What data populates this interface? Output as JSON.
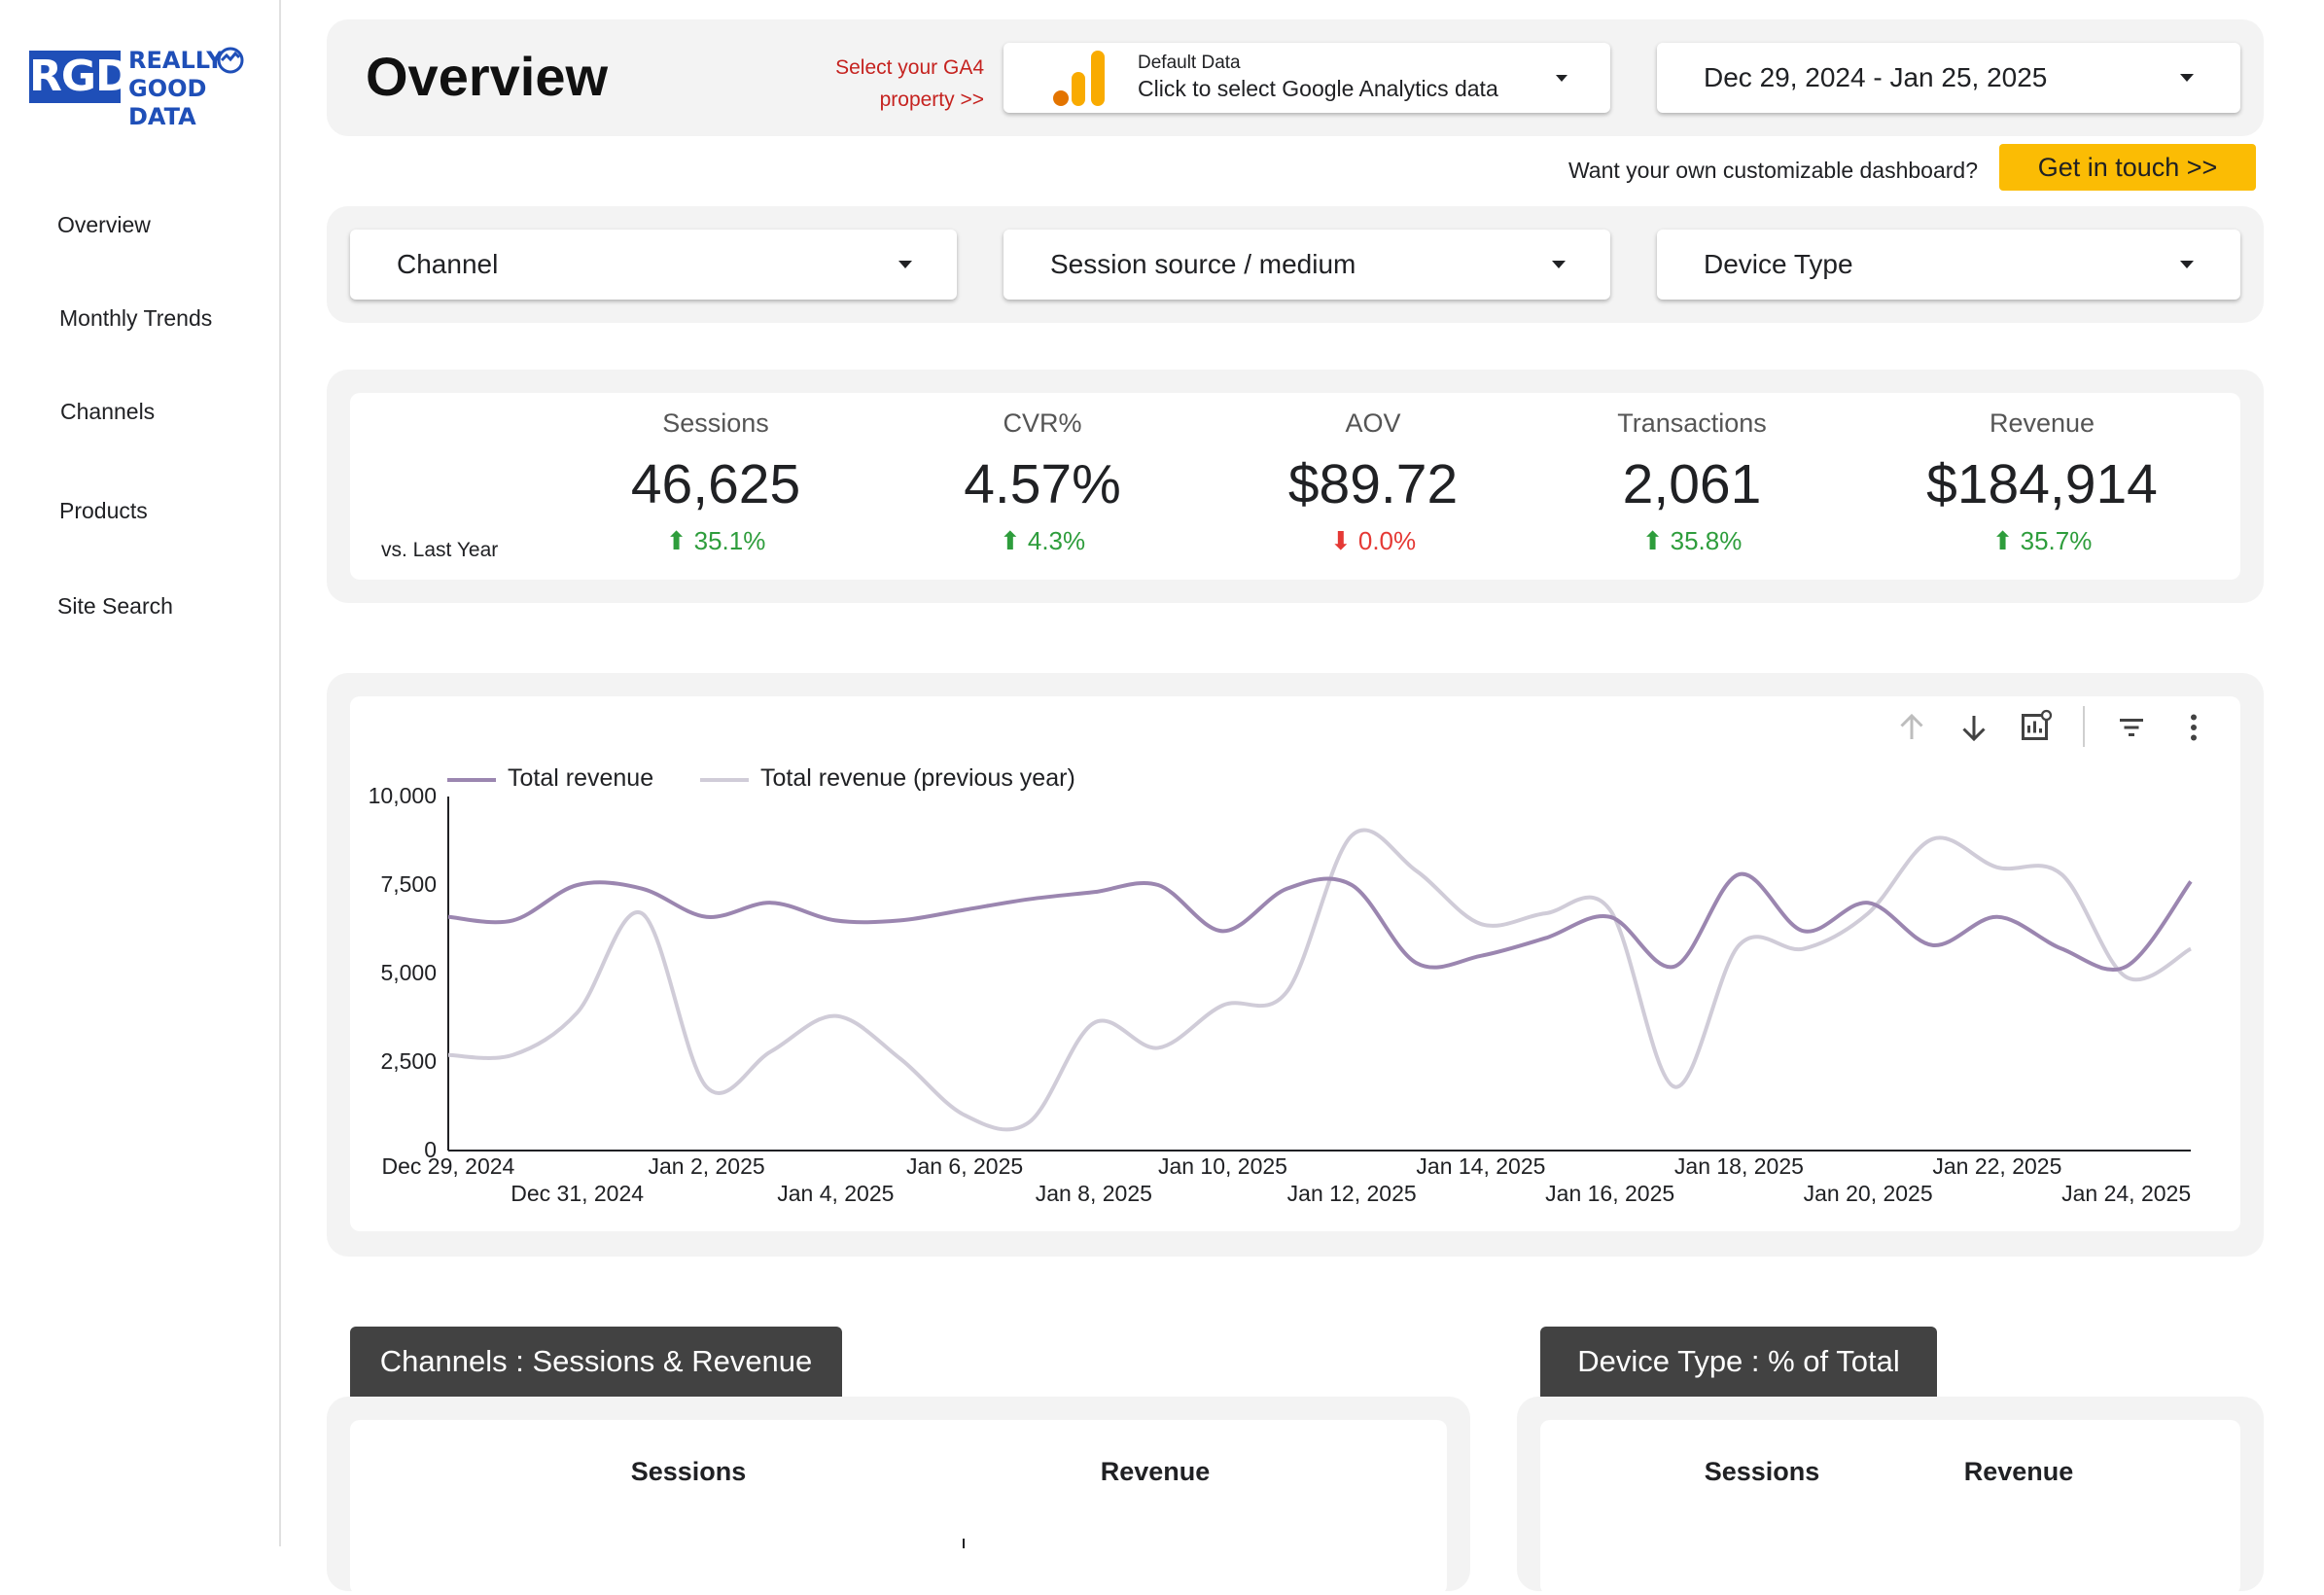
{
  "brand": {
    "logo_initials": "RGD",
    "logo_line1": "REALLY",
    "logo_line2": "GOOD DATA"
  },
  "nav": {
    "items": [
      {
        "label": "Overview"
      },
      {
        "label": "Monthly Trends"
      },
      {
        "label": "Channels"
      },
      {
        "label": "Products"
      },
      {
        "label": "Site Search"
      }
    ]
  },
  "header": {
    "title": "Overview",
    "ga4_prompt_line1": "Select your GA4",
    "ga4_prompt_line2": "property >>",
    "data_source": {
      "label": "Default Data",
      "value": "Click to select Google Analytics data",
      "icon": "google-analytics-icon"
    },
    "date_range": "Dec 29, 2024 - Jan 25, 2025",
    "cta_prompt": "Want your own customizable dashboard?",
    "cta_button": "Get in touch >>"
  },
  "filters": [
    {
      "label": "Channel"
    },
    {
      "label": "Session source / medium"
    },
    {
      "label": "Device Type"
    }
  ],
  "kpis": {
    "comparison_label": "vs. Last Year",
    "items": [
      {
        "label": "Sessions",
        "value": "46,625",
        "delta": "35.1%",
        "direction": "up"
      },
      {
        "label": "CVR%",
        "value": "4.57%",
        "delta": "4.3%",
        "direction": "up"
      },
      {
        "label": "AOV",
        "value": "$89.72",
        "delta": "0.0%",
        "direction": "down"
      },
      {
        "label": "Transactions",
        "value": "2,061",
        "delta": "35.8%",
        "direction": "up"
      },
      {
        "label": "Revenue",
        "value": "$184,914",
        "delta": "35.7%",
        "direction": "up"
      }
    ]
  },
  "chart_data": {
    "type": "line",
    "title": "",
    "xlabel": "",
    "ylabel": "",
    "ylim": [
      0,
      10000
    ],
    "yticks": [
      "0",
      "2,500",
      "5,000",
      "7,500",
      "10,000"
    ],
    "ytick_values": [
      0,
      2500,
      5000,
      7500,
      10000
    ],
    "x": [
      "Dec 29, 2024",
      "Dec 30, 2024",
      "Dec 31, 2024",
      "Jan 1, 2025",
      "Jan 2, 2025",
      "Jan 3, 2025",
      "Jan 4, 2025",
      "Jan 5, 2025",
      "Jan 6, 2025",
      "Jan 7, 2025",
      "Jan 8, 2025",
      "Jan 9, 2025",
      "Jan 10, 2025",
      "Jan 11, 2025",
      "Jan 12, 2025",
      "Jan 13, 2025",
      "Jan 14, 2025",
      "Jan 15, 2025",
      "Jan 16, 2025",
      "Jan 17, 2025",
      "Jan 18, 2025",
      "Jan 19, 2025",
      "Jan 20, 2025",
      "Jan 21, 2025",
      "Jan 22, 2025",
      "Jan 23, 2025",
      "Jan 24, 2025",
      "Jan 25, 2025"
    ],
    "xtick_labels_row1": [
      "Dec 29, 2024",
      "Jan 2, 2025",
      "Jan 6, 2025",
      "Jan 10, 2025",
      "Jan 14, 2025",
      "Jan 18, 2025",
      "Jan 22, 2025"
    ],
    "xtick_labels_row2": [
      "Dec 31, 2024",
      "Jan 4, 2025",
      "Jan 8, 2025",
      "Jan 12, 2025",
      "Jan 16, 2025",
      "Jan 20, 2025",
      "Jan 24, 2025"
    ],
    "legend_placement": "top-left",
    "grid": false,
    "series": [
      {
        "name": "Total revenue",
        "color": "#9b86b0",
        "values": [
          6600,
          6500,
          7500,
          7400,
          6600,
          7000,
          6500,
          6500,
          6800,
          7100,
          7300,
          7500,
          6200,
          7400,
          7500,
          5300,
          5500,
          6000,
          6600,
          5200,
          7800,
          6200,
          7000,
          5800,
          6600,
          5700,
          5200,
          7600
        ]
      },
      {
        "name": "Total revenue (previous year)",
        "color": "#d0ccd8",
        "values": [
          2700,
          2700,
          3900,
          6700,
          1800,
          2800,
          3800,
          2600,
          1000,
          800,
          3600,
          2900,
          4100,
          4500,
          8900,
          7900,
          6400,
          6700,
          6800,
          1800,
          5800,
          5700,
          6700,
          8800,
          8000,
          7800,
          4900,
          5700
        ]
      }
    ]
  },
  "chart_toolbar": {
    "icons": [
      "arrow-up-icon",
      "arrow-down-icon",
      "drill-icon",
      "filter-icon",
      "more-icon"
    ]
  },
  "channels_section": {
    "tab": "Channels : Sessions & Revenue",
    "col1": "Sessions",
    "col2": "Revenue"
  },
  "device_section": {
    "tab": "Device Type : % of Total",
    "col1": "Sessions",
    "col2": "Revenue"
  },
  "colors": {
    "accent_yellow": "#fbbc04",
    "brand_blue": "#1f4fb8",
    "prompt_red": "#c5221f",
    "up_green": "#2e9d3c",
    "down_red": "#e53935"
  }
}
